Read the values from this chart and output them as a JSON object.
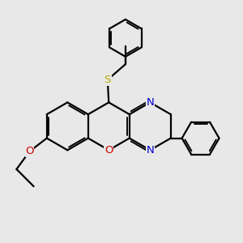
{
  "bg_color": "#e8e8e8",
  "bond_color": "#000000",
  "bond_width": 1.6,
  "N_color": "#0000cc",
  "O_color": "#cc0000",
  "S_color": "#bbaa00",
  "figsize": [
    3.0,
    3.0
  ],
  "dpi": 100,
  "xlim": [
    0,
    10
  ],
  "ylim": [
    0,
    10
  ]
}
